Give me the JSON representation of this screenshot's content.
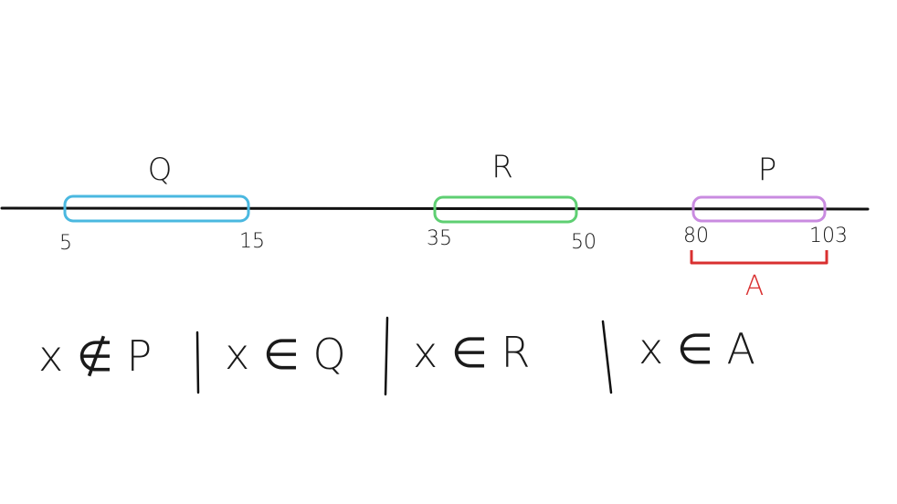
{
  "sets": [
    {
      "label": "Q",
      "start": "5",
      "end": "15",
      "color": "#4ab8e0"
    },
    {
      "label": "R",
      "start": "35",
      "end": "50",
      "color": "#5ecf72"
    },
    {
      "label": "P",
      "start": "80",
      "end": "103",
      "color": "#c98be0"
    }
  ],
  "bracket": {
    "label": "A",
    "color": "#d93030"
  },
  "conditions": [
    "x ∉ P",
    "x ∈ Q",
    "x ∈ R",
    "x ∈ A"
  ],
  "line_color": "#111111"
}
